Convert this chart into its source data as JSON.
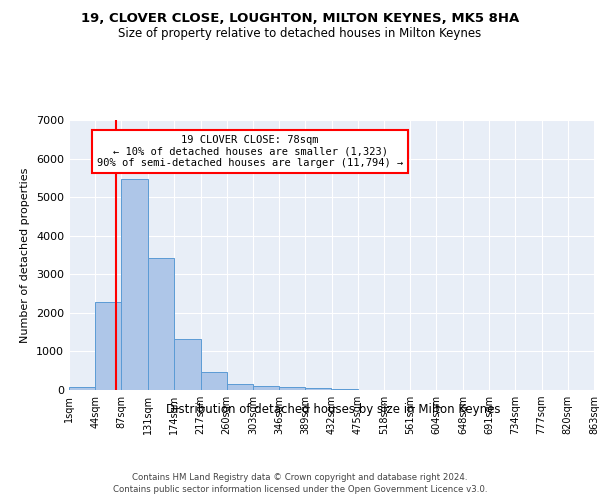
{
  "title": "19, CLOVER CLOSE, LOUGHTON, MILTON KEYNES, MK5 8HA",
  "subtitle": "Size of property relative to detached houses in Milton Keynes",
  "xlabel": "Distribution of detached houses by size in Milton Keynes",
  "ylabel": "Number of detached properties",
  "footnote1": "Contains HM Land Registry data © Crown copyright and database right 2024.",
  "footnote2": "Contains public sector information licensed under the Open Government Licence v3.0.",
  "annotation_line1": "19 CLOVER CLOSE: 78sqm",
  "annotation_line2": "← 10% of detached houses are smaller (1,323)",
  "annotation_line3": "90% of semi-detached houses are larger (11,794) →",
  "bar_color": "#aec6e8",
  "bar_edge_color": "#5b9bd5",
  "bg_color": "#e8eef7",
  "grid_color": "#ffffff",
  "red_line_x": 78,
  "bin_edges": [
    1,
    44,
    87,
    131,
    174,
    217,
    260,
    303,
    346,
    389,
    432,
    475,
    518,
    561,
    604,
    648,
    691,
    734,
    777,
    820,
    863
  ],
  "bin_labels": [
    "1sqm",
    "44sqm",
    "87sqm",
    "131sqm",
    "174sqm",
    "217sqm",
    "260sqm",
    "303sqm",
    "346sqm",
    "389sqm",
    "432sqm",
    "475sqm",
    "518sqm",
    "561sqm",
    "604sqm",
    "648sqm",
    "691sqm",
    "734sqm",
    "777sqm",
    "820sqm",
    "863sqm"
  ],
  "bar_heights": [
    75,
    2270,
    5480,
    3430,
    1310,
    460,
    155,
    95,
    65,
    40,
    15,
    5,
    3,
    2,
    1,
    1,
    0,
    0,
    0,
    0
  ],
  "ylim": [
    0,
    7000
  ],
  "yticks": [
    0,
    1000,
    2000,
    3000,
    4000,
    5000,
    6000,
    7000
  ]
}
